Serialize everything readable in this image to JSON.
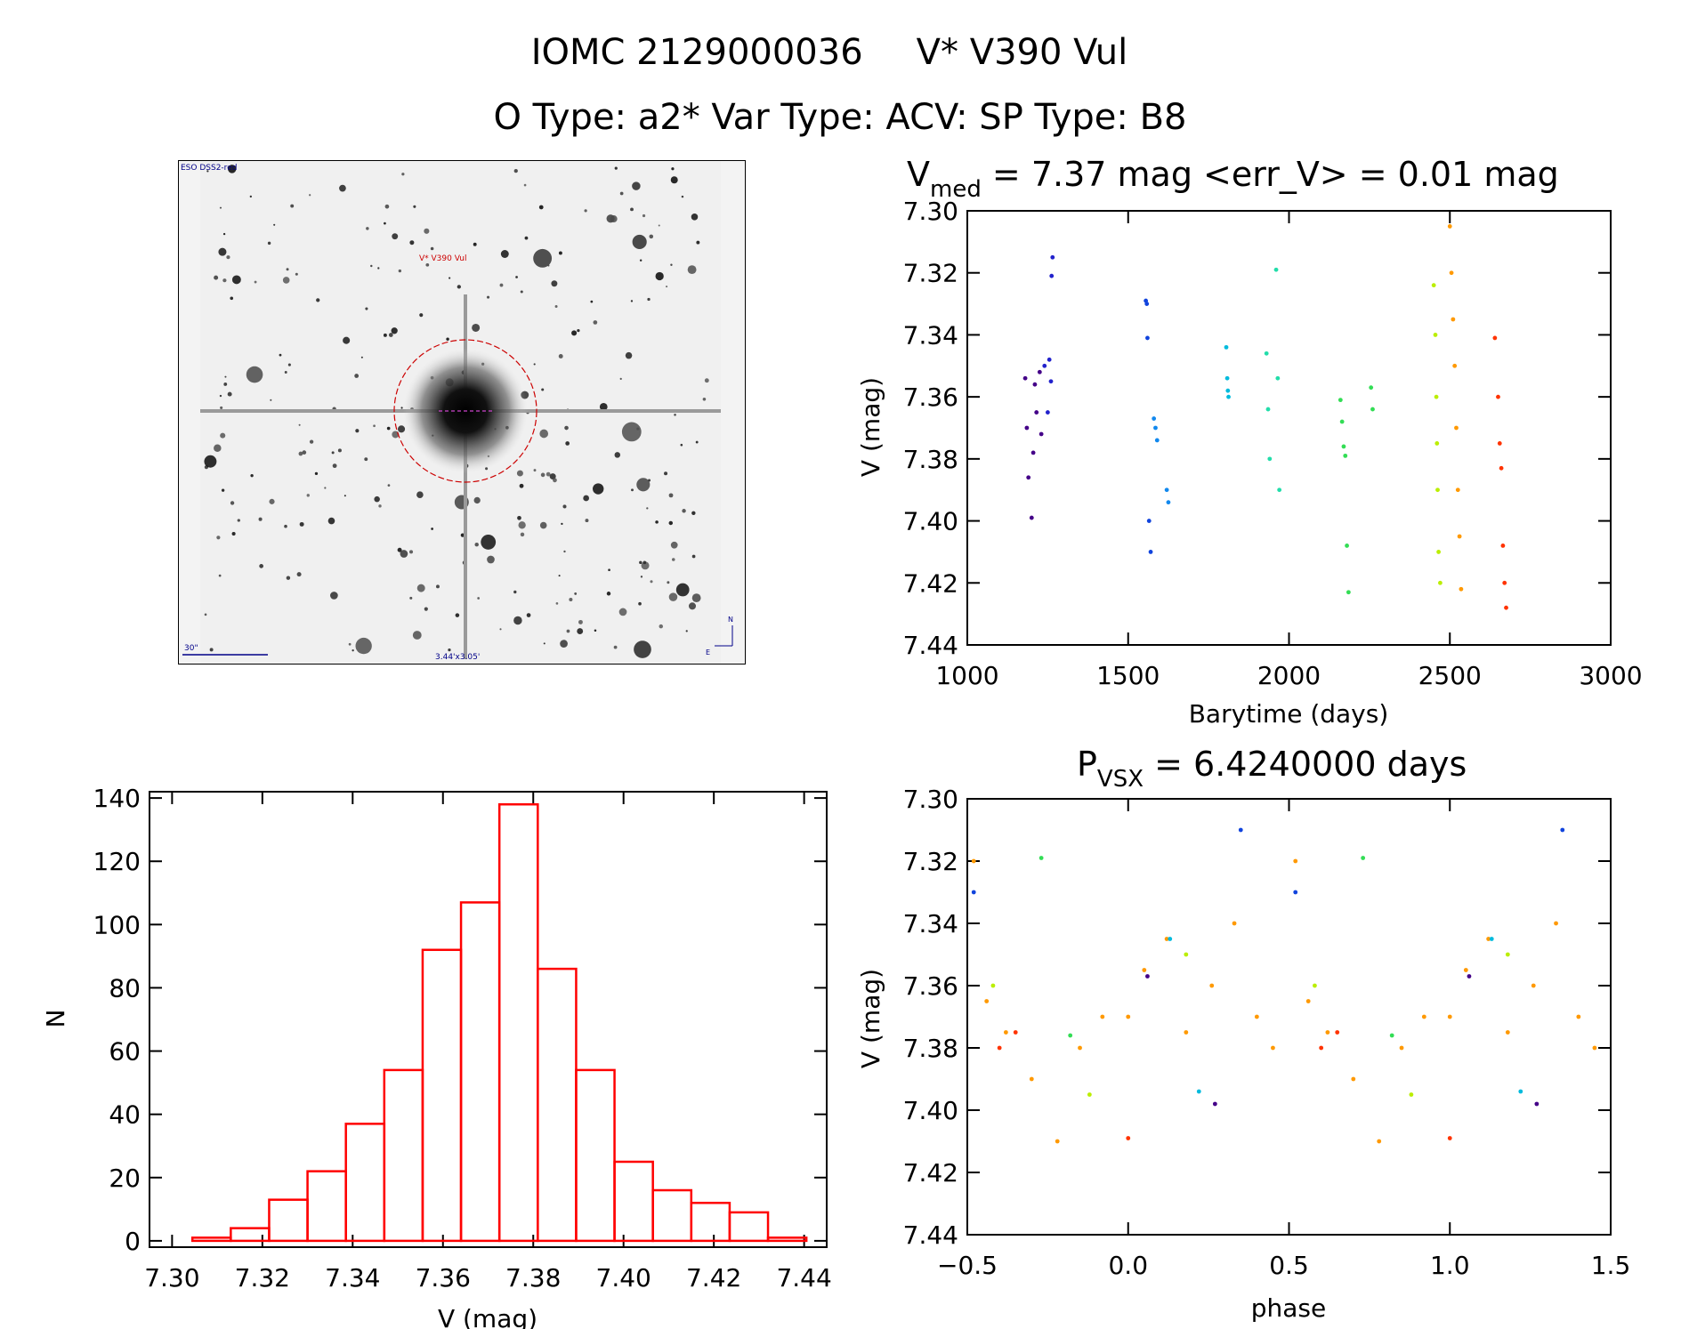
{
  "title": {
    "line1_id": "IOMC 2129000036",
    "line1_name": "V* V390 Vul",
    "line2": "O Type: a2*  Var Type: ACV:  SP Type: B8"
  },
  "image_panel": {
    "survey_label": "ESO DSS2-red",
    "target_label": "V* V390 Vul",
    "scale_label": "30\"",
    "fov_label": "3.44'x3.05'",
    "compass_n": "N",
    "compass_e": "E"
  },
  "colors": {
    "axis": "#000000",
    "hist": "#ff0000",
    "marker": "#ff0000"
  },
  "chart_data": [
    {
      "name": "light-curve",
      "type": "scatter",
      "title_main": "V",
      "title_sub": "med",
      "title_rest": " = 7.37 mag <err_V> = 0.01 mag",
      "xlabel": "Barytime (days)",
      "ylabel": "V (mag)",
      "xlim": [
        1000,
        3000
      ],
      "ylim": [
        7.44,
        7.3
      ],
      "xticks": [
        1000,
        1500,
        2000,
        2500,
        3000
      ],
      "xtick_labels": [
        "1000",
        "1500",
        "2000",
        "2500",
        "3000"
      ],
      "yticks": [
        7.3,
        7.32,
        7.34,
        7.36,
        7.38,
        7.4,
        7.42,
        7.44
      ],
      "ytick_labels": [
        "7.30",
        "7.32",
        "7.34",
        "7.36",
        "7.38",
        "7.40",
        "7.42",
        "7.44"
      ],
      "groups": [
        {
          "color": "#440088",
          "x": [
            1180,
            1185,
            1190,
            1200,
            1205,
            1210,
            1215,
            1225,
            1230
          ],
          "y": [
            7.354,
            7.37,
            7.386,
            7.399,
            7.378,
            7.356,
            7.365,
            7.352,
            7.372
          ]
        },
        {
          "color": "#2222cc",
          "x": [
            1240,
            1250,
            1255,
            1260,
            1262,
            1265
          ],
          "y": [
            7.35,
            7.365,
            7.348,
            7.355,
            7.321,
            7.315
          ]
        },
        {
          "color": "#1144dd",
          "x": [
            1555,
            1558,
            1560,
            1565,
            1570
          ],
          "y": [
            7.329,
            7.33,
            7.341,
            7.4,
            7.41
          ]
        },
        {
          "color": "#1188ee",
          "x": [
            1580,
            1585,
            1590,
            1620,
            1625
          ],
          "y": [
            7.367,
            7.37,
            7.374,
            7.39,
            7.394
          ]
        },
        {
          "color": "#00bbdd",
          "x": [
            1805,
            1808,
            1810,
            1812
          ],
          "y": [
            7.344,
            7.354,
            7.358,
            7.36
          ]
        },
        {
          "color": "#22ddaa",
          "x": [
            1930,
            1935,
            1940,
            1960,
            1965,
            1970
          ],
          "y": [
            7.346,
            7.364,
            7.38,
            7.319,
            7.354,
            7.39
          ]
        },
        {
          "color": "#33dd55",
          "x": [
            2160,
            2165,
            2170,
            2175,
            2180,
            2185,
            2255,
            2260
          ],
          "y": [
            7.361,
            7.368,
            7.376,
            7.379,
            7.408,
            7.423,
            7.357,
            7.364
          ]
        },
        {
          "color": "#bbee00",
          "x": [
            2450,
            2455,
            2458,
            2460,
            2462,
            2465,
            2470
          ],
          "y": [
            7.324,
            7.34,
            7.36,
            7.375,
            7.39,
            7.41,
            7.42
          ]
        },
        {
          "color": "#ff9900",
          "x": [
            2500,
            2505,
            2510,
            2515,
            2520,
            2525,
            2530,
            2535
          ],
          "y": [
            7.305,
            7.32,
            7.335,
            7.35,
            7.37,
            7.39,
            7.405,
            7.422
          ]
        },
        {
          "color": "#ff3300",
          "x": [
            2640,
            2650,
            2655,
            2660,
            2665,
            2670,
            2675
          ],
          "y": [
            7.341,
            7.36,
            7.375,
            7.383,
            7.408,
            7.42,
            7.428
          ]
        }
      ]
    },
    {
      "name": "histogram",
      "type": "bar",
      "xlabel": "V (mag)",
      "ylabel": "N",
      "xlim": [
        7.295,
        7.445
      ],
      "ylim": [
        -2,
        142
      ],
      "xticks": [
        7.3,
        7.32,
        7.34,
        7.36,
        7.38,
        7.4,
        7.42,
        7.44
      ],
      "xtick_labels": [
        "7.30",
        "7.32",
        "7.34",
        "7.36",
        "7.38",
        "7.40",
        "7.42",
        "7.44"
      ],
      "yticks": [
        0,
        20,
        40,
        60,
        80,
        100,
        120,
        140
      ],
      "ytick_labels": [
        "0",
        "20",
        "40",
        "60",
        "80",
        "100",
        "120",
        "140"
      ],
      "bin_edges": [
        7.3045,
        7.313,
        7.3215,
        7.33,
        7.3385,
        7.347,
        7.3555,
        7.364,
        7.3725,
        7.381,
        7.3895,
        7.398,
        7.4065,
        7.415,
        7.4235,
        7.432
      ],
      "counts": [
        1,
        4,
        13,
        22,
        37,
        54,
        92,
        107,
        138,
        86,
        54,
        25,
        16,
        12,
        9,
        1
      ]
    },
    {
      "name": "phased-light-curve",
      "type": "scatter",
      "title_main": "P",
      "title_sub": "VSX",
      "title_rest": " = 6.4240000 days",
      "xlabel": "phase",
      "ylabel": "V (mag)",
      "xlim": [
        -0.5,
        1.5
      ],
      "ylim": [
        7.44,
        7.3
      ],
      "xticks": [
        -0.5,
        0.0,
        0.5,
        1.0,
        1.5
      ],
      "xtick_labels": [
        "−0.5",
        "0.0",
        "0.5",
        "1.0",
        "1.5"
      ],
      "yticks": [
        7.3,
        7.32,
        7.34,
        7.36,
        7.38,
        7.4,
        7.42,
        7.44
      ],
      "ytick_labels": [
        "7.30",
        "7.32",
        "7.34",
        "7.36",
        "7.38",
        "7.40",
        "7.42",
        "7.44"
      ],
      "period_days": 6.424,
      "groups": [
        {
          "color": "#ff9900",
          "x": [
            -0.48,
            -0.44,
            -0.38,
            -0.3,
            -0.22,
            -0.15,
            -0.08,
            0.0,
            0.05,
            0.12,
            0.18,
            0.26,
            0.33,
            0.4,
            0.45,
            0.52,
            0.56,
            0.62,
            0.7,
            0.78,
            0.85,
            0.92,
            1.0,
            1.05,
            1.12,
            1.18,
            1.26,
            1.33,
            1.4,
            1.45
          ],
          "y": [
            7.32,
            7.365,
            7.375,
            7.39,
            7.41,
            7.38,
            7.37,
            7.37,
            7.355,
            7.345,
            7.375,
            7.36,
            7.34,
            7.37,
            7.38,
            7.32,
            7.365,
            7.375,
            7.39,
            7.41,
            7.38,
            7.37,
            7.37,
            7.355,
            7.345,
            7.375,
            7.36,
            7.34,
            7.37,
            7.38
          ]
        },
        {
          "color": "#ff3300",
          "x": [
            -0.4,
            -0.35,
            0.0,
            0.6,
            0.65,
            1.0
          ],
          "y": [
            7.38,
            7.375,
            7.409,
            7.38,
            7.375,
            7.409
          ]
        },
        {
          "color": "#bbee00",
          "x": [
            -0.42,
            -0.12,
            0.18,
            0.58,
            0.88,
            1.18
          ],
          "y": [
            7.36,
            7.395,
            7.35,
            7.36,
            7.395,
            7.35
          ]
        },
        {
          "color": "#33dd55",
          "x": [
            -0.27,
            -0.18,
            0.73,
            0.82
          ],
          "y": [
            7.319,
            7.376,
            7.319,
            7.376
          ]
        },
        {
          "color": "#00bbdd",
          "x": [
            0.13,
            0.22,
            1.13,
            1.22
          ],
          "y": [
            7.345,
            7.394,
            7.345,
            7.394
          ]
        },
        {
          "color": "#1144dd",
          "x": [
            -0.48,
            0.35,
            0.52,
            1.35
          ],
          "y": [
            7.33,
            7.31,
            7.33,
            7.31
          ]
        },
        {
          "color": "#440088",
          "x": [
            0.06,
            0.27,
            1.06,
            1.27
          ],
          "y": [
            7.357,
            7.398,
            7.357,
            7.398
          ]
        }
      ]
    }
  ]
}
